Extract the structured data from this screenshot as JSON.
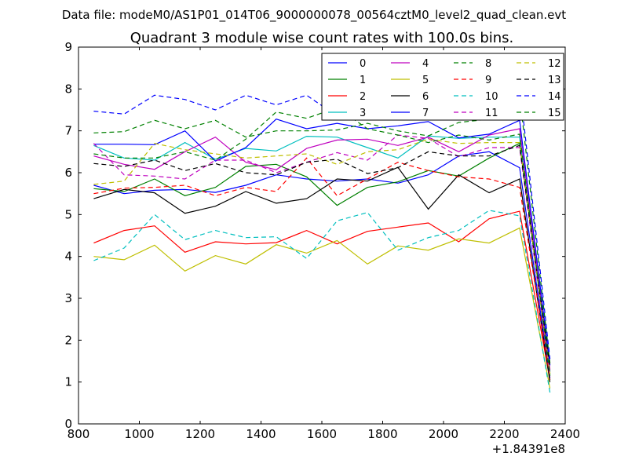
{
  "suptitle": "Data file: modeM0/AS1P01_014T06_9000000078_00564cztM0_level2_quad_clean.evt",
  "chart_data": {
    "type": "line",
    "title": "Quadrant 3 module wise count rates with 100.0s bins.",
    "xlabel": "",
    "ylabel": "",
    "xlim": [
      800,
      2400
    ],
    "ylim": [
      0,
      9
    ],
    "x_offset_label": "+1.84391e8",
    "xticks": [
      800,
      1000,
      1200,
      1400,
      1600,
      1800,
      2000,
      2200,
      2400
    ],
    "xtick_labels": [
      "800",
      "1000",
      "1200",
      "1400",
      "1600",
      "1800",
      "2000",
      "2200",
      "2400"
    ],
    "yticks": [
      0,
      1,
      2,
      3,
      4,
      5,
      6,
      7,
      8,
      9
    ],
    "ytick_labels": [
      "0",
      "1",
      "2",
      "3",
      "4",
      "5",
      "6",
      "7",
      "8",
      "9"
    ],
    "grid": false,
    "legend_position": "top-right",
    "legend_columns": 4,
    "x": [
      850,
      950,
      1050,
      1150,
      1250,
      1350,
      1450,
      1550,
      1650,
      1750,
      1850,
      1950,
      2050,
      2150,
      2250,
      2350
    ],
    "series": [
      {
        "name": "0",
        "color": "#0000ff",
        "dash": false,
        "values": [
          5.7,
          5.5,
          5.58,
          5.6,
          5.53,
          5.7,
          5.95,
          5.85,
          5.8,
          5.85,
          5.75,
          5.95,
          6.4,
          6.5,
          6.12,
          1.1
        ]
      },
      {
        "name": "1",
        "color": "#008000",
        "dash": false,
        "values": [
          5.62,
          5.55,
          5.85,
          5.45,
          5.65,
          6.15,
          6.2,
          5.9,
          5.22,
          5.65,
          5.78,
          6.05,
          5.92,
          6.35,
          6.7,
          1.25
        ]
      },
      {
        "name": "2",
        "color": "#ff0000",
        "dash": false,
        "values": [
          4.32,
          4.62,
          4.73,
          4.1,
          4.35,
          4.3,
          4.33,
          4.62,
          4.3,
          4.6,
          4.7,
          4.8,
          4.35,
          4.9,
          5.08,
          1.05
        ]
      },
      {
        "name": "3",
        "color": "#00bfbf",
        "dash": false,
        "values": [
          6.65,
          6.35,
          6.3,
          6.72,
          6.32,
          6.58,
          6.52,
          6.87,
          6.85,
          6.6,
          6.35,
          6.88,
          6.82,
          6.85,
          6.85,
          1.2
        ]
      },
      {
        "name": "4",
        "color": "#bf00bf",
        "dash": false,
        "values": [
          6.4,
          6.2,
          6.08,
          6.5,
          6.85,
          6.25,
          6.07,
          6.58,
          6.78,
          6.8,
          6.65,
          6.85,
          6.5,
          6.9,
          7.05,
          1.3
        ]
      },
      {
        "name": "5",
        "color": "#bfbf00",
        "dash": false,
        "values": [
          4.0,
          3.92,
          4.27,
          3.65,
          4.02,
          3.82,
          4.28,
          4.08,
          4.38,
          3.82,
          4.25,
          4.15,
          4.42,
          4.32,
          4.68,
          0.85
        ]
      },
      {
        "name": "6",
        "color": "#000000",
        "dash": false,
        "values": [
          5.38,
          5.6,
          5.52,
          5.03,
          5.2,
          5.55,
          5.27,
          5.38,
          5.85,
          5.8,
          6.13,
          5.13,
          5.95,
          5.52,
          5.85,
          1.0
        ]
      },
      {
        "name": "7",
        "color": "#0000ff",
        "dash": false,
        "values": [
          6.68,
          6.68,
          6.67,
          7.0,
          6.28,
          6.6,
          7.28,
          7.05,
          7.18,
          7.05,
          7.12,
          7.22,
          6.83,
          6.92,
          7.25,
          1.4
        ]
      },
      {
        "name": "8",
        "color": "#008000",
        "dash": true,
        "values": [
          6.95,
          6.98,
          7.25,
          7.05,
          7.25,
          6.85,
          7.0,
          7.0,
          7.02,
          7.18,
          7.0,
          6.88,
          7.2,
          7.28,
          7.85,
          1.45
        ]
      },
      {
        "name": "9",
        "color": "#ff0000",
        "dash": true,
        "values": [
          5.5,
          5.63,
          5.65,
          5.7,
          5.45,
          5.65,
          5.55,
          6.35,
          5.45,
          5.85,
          6.25,
          6.05,
          5.9,
          5.85,
          5.65,
          1.1
        ]
      },
      {
        "name": "10",
        "color": "#00bfbf",
        "dash": true,
        "values": [
          3.9,
          4.2,
          5.0,
          4.4,
          4.62,
          4.45,
          4.47,
          3.95,
          4.85,
          5.05,
          4.15,
          4.45,
          4.62,
          5.1,
          4.97,
          0.75
        ]
      },
      {
        "name": "11",
        "color": "#bf00bf",
        "dash": true,
        "values": [
          6.7,
          5.95,
          5.92,
          5.85,
          6.3,
          6.3,
          6.0,
          6.25,
          6.48,
          6.3,
          6.9,
          6.82,
          6.38,
          6.6,
          6.6,
          1.15
        ]
      },
      {
        "name": "12",
        "color": "#bfbf00",
        "dash": true,
        "values": [
          5.72,
          5.8,
          6.7,
          6.55,
          6.45,
          6.35,
          6.4,
          6.45,
          6.2,
          6.5,
          6.55,
          6.8,
          6.7,
          6.72,
          6.72,
          1.2
        ]
      },
      {
        "name": "13",
        "color": "#000000",
        "dash": true,
        "values": [
          6.22,
          6.15,
          6.3,
          6.05,
          6.22,
          6.0,
          5.95,
          6.25,
          6.32,
          5.98,
          6.12,
          6.5,
          6.4,
          6.4,
          6.65,
          1.35
        ]
      },
      {
        "name": "14",
        "color": "#0000ff",
        "dash": true,
        "values": [
          7.47,
          7.4,
          7.85,
          7.75,
          7.5,
          7.85,
          7.62,
          7.85,
          7.35,
          7.65,
          7.75,
          7.82,
          7.88,
          8.05,
          8.1,
          1.55
        ]
      },
      {
        "name": "15",
        "color": "#008000",
        "dash": true,
        "values": [
          6.45,
          6.35,
          6.35,
          6.5,
          6.3,
          6.8,
          7.45,
          7.3,
          7.55,
          7.05,
          6.9,
          6.72,
          6.9,
          6.78,
          6.92,
          1.15
        ]
      }
    ]
  }
}
